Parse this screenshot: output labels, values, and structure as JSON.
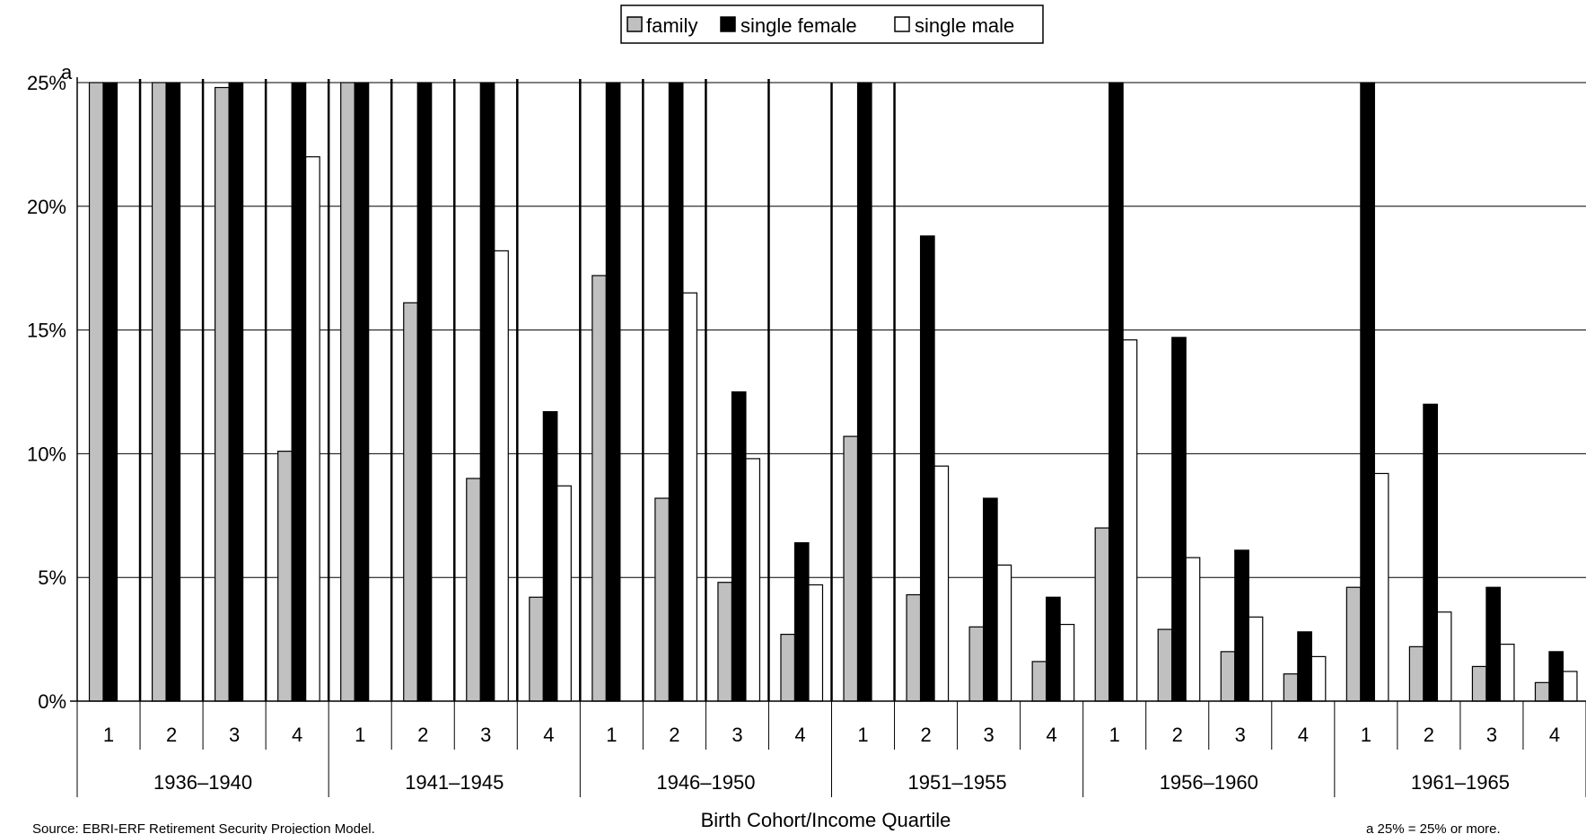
{
  "chart_data": {
    "type": "bar",
    "xlabel": "Birth Cohort/Income Quartile",
    "ylabel": "",
    "ylim": [
      0,
      25
    ],
    "y_ticks": [
      "0%",
      "5%",
      "10%",
      "15%",
      "20%",
      "25%"
    ],
    "y_top_mark": "a",
    "legend_position": "top-center",
    "groups": [
      "1936–1940",
      "1941–1945",
      "1946–1950",
      "1951–1955",
      "1956–1960",
      "1961–1965"
    ],
    "quartiles": [
      "1",
      "2",
      "3",
      "4"
    ],
    "series": [
      {
        "name": "family",
        "color": "#c0c0c0",
        "values": [
          25,
          25,
          24.8,
          10.1,
          25,
          16.1,
          9.0,
          4.2,
          17.2,
          8.2,
          4.8,
          2.7,
          10.7,
          4.3,
          3.0,
          1.6,
          7.0,
          2.9,
          2.0,
          1.1,
          4.6,
          2.2,
          1.4,
          0.75
        ]
      },
      {
        "name": "single female",
        "color": "#000000",
        "values": [
          25,
          25,
          25,
          25,
          25,
          25,
          25,
          11.7,
          25,
          25,
          12.5,
          6.4,
          25,
          18.8,
          8.2,
          4.2,
          25,
          14.7,
          6.1,
          2.8,
          25,
          12.0,
          4.6,
          2.0
        ]
      },
      {
        "name": "single male",
        "color": "#ffffff",
        "values": [
          null,
          null,
          null,
          22.0,
          null,
          null,
          18.2,
          8.7,
          null,
          16.5,
          9.8,
          4.7,
          null,
          9.5,
          5.5,
          3.1,
          14.6,
          5.8,
          3.4,
          1.8,
          9.2,
          3.6,
          2.3,
          1.2
        ]
      }
    ],
    "source": "Source: EBRI-ERF Retirement Security Projection Model.",
    "footnote": "a 25% = 25% or more."
  }
}
